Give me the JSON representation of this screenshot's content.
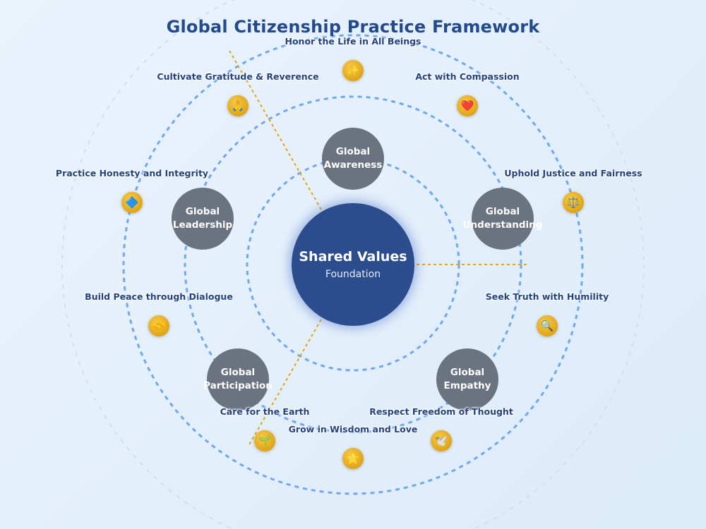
{
  "title": "Global Citizenship Practice Framework",
  "core": {
    "title": "Shared Values",
    "subtitle": "Foundation"
  },
  "nodes": [
    {
      "id": "awareness",
      "line1": "Global",
      "line2": "Awareness"
    },
    {
      "id": "understanding",
      "line1": "Global",
      "line2": "Understanding"
    },
    {
      "id": "empathy",
      "line1": "Global",
      "line2": "Empathy"
    },
    {
      "id": "participation",
      "line1": "Global",
      "line2": "Participation"
    },
    {
      "id": "leadership",
      "line1": "Global",
      "line2": "Leadership"
    }
  ],
  "practices": [
    {
      "label": "Honor the Life in All Beings",
      "icon": "sparkles-icon",
      "glyph": "✨"
    },
    {
      "label": "Act with Compassion",
      "icon": "heart-icon",
      "glyph": "❤️"
    },
    {
      "label": "Uphold Justice and Fairness",
      "icon": "scales-icon",
      "glyph": "⚖️"
    },
    {
      "label": "Seek Truth with Humility",
      "icon": "magnifier-icon",
      "glyph": "🔍"
    },
    {
      "label": "Respect Freedom of Thought",
      "icon": "dove-icon",
      "glyph": "🕊️"
    },
    {
      "label": "Grow in Wisdom and Love",
      "icon": "star-icon",
      "glyph": "⭐"
    },
    {
      "label": "Care for the Earth",
      "icon": "seedling-icon",
      "glyph": "🌱"
    },
    {
      "label": "Build Peace through Dialogue",
      "icon": "handshake-icon",
      "glyph": "🤝"
    },
    {
      "label": "Practice Honesty and Integrity",
      "icon": "diamond-icon",
      "glyph": "🔷"
    },
    {
      "label": "Cultivate Gratitude & Reverence",
      "icon": "praying-hands-icon",
      "glyph": "🙏"
    }
  ],
  "colors": {
    "core": "#2b4d8e",
    "node": "#6b7280",
    "ring": "#6ea8f0",
    "connector": "#e0a515",
    "title": "#234a8f"
  }
}
